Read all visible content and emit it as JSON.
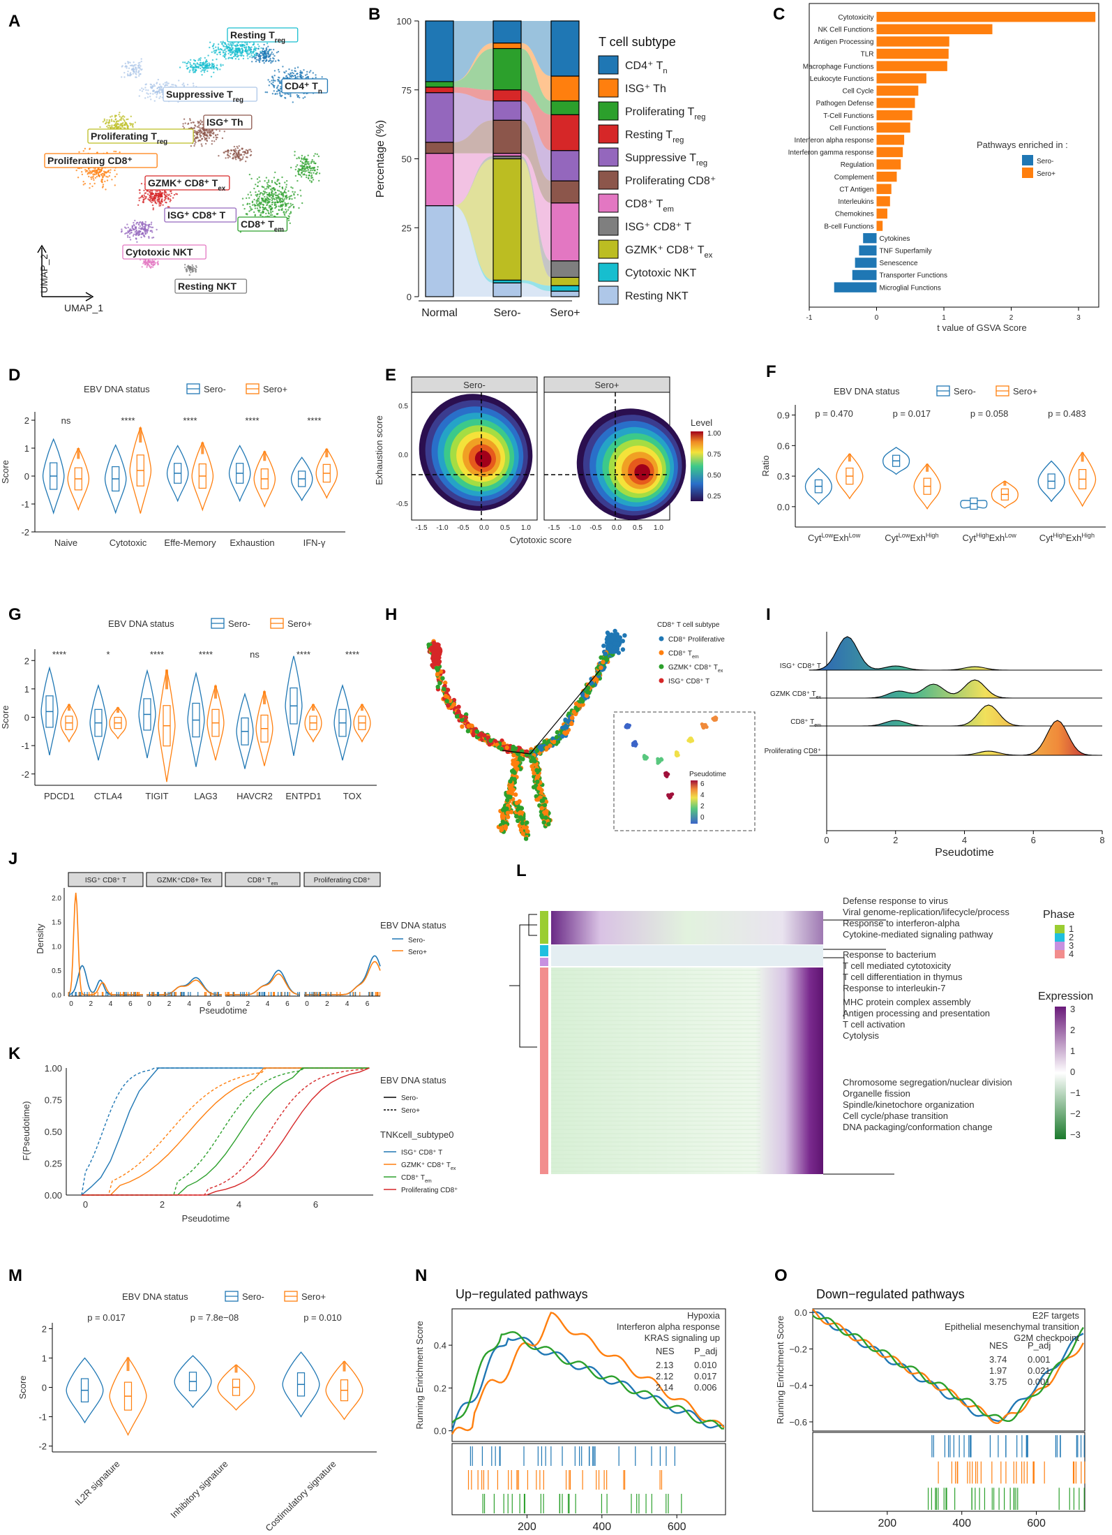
{
  "colors": {
    "sero_minus": "#1f77b4",
    "sero_plus": "#ff7f0e",
    "green": "#2ca02c",
    "red": "#d62728",
    "purple": "#9467bd",
    "brown": "#8c564b",
    "pink": "#e377c2",
    "grey": "#7f7f7f",
    "olive": "#bcbd22",
    "cyan": "#17becf",
    "lightblue": "#aec7e8",
    "phase1": "#9acd32",
    "phase2": "#1fbfdf",
    "phase3": "#c790e0",
    "phase4": "#f28d8d"
  },
  "panel_letters": [
    "A",
    "B",
    "C",
    "D",
    "E",
    "F",
    "G",
    "H",
    "I",
    "J",
    "K",
    "L",
    "M",
    "N",
    "O"
  ],
  "chart_data": [
    {
      "panel": "A",
      "type": "scatter",
      "title": "UMAP of T/NK cell subtypes",
      "xlabel": "UMAP_1",
      "ylabel": "UMAP_2",
      "clusters": [
        {
          "name": "Resting T",
          "sub": "reg",
          "color": "#17becf"
        },
        {
          "name": "CD4⁺ T",
          "sub": "n",
          "color": "#1f77b4"
        },
        {
          "name": "Suppressive T",
          "sub": "reg",
          "color": "#aec7e8"
        },
        {
          "name": "ISG⁺ Th",
          "sub": "",
          "color": "#8c564b"
        },
        {
          "name": "Proliferating T",
          "sub": "reg",
          "color": "#bcbd22"
        },
        {
          "name": "Proliferating CD8⁺",
          "sub": "",
          "color": "#ff7f0e"
        },
        {
          "name": "GZMK⁺ CD8⁺ T",
          "sub": "ex",
          "color": "#d62728"
        },
        {
          "name": "ISG⁺ CD8⁺ T",
          "sub": "",
          "color": "#9467bd"
        },
        {
          "name": "CD8⁺ T",
          "sub": "em",
          "color": "#2ca02c"
        },
        {
          "name": "Cytotoxic NKT",
          "sub": "",
          "color": "#e377c2"
        },
        {
          "name": "Resting NKT",
          "sub": "",
          "color": "#7f7f7f"
        }
      ]
    },
    {
      "panel": "B",
      "type": "bar",
      "ylabel": "Percentage (%)",
      "categories": [
        "Normal",
        "Sero-",
        "Sero+"
      ],
      "yticks": [
        "0",
        "25",
        "50",
        "75",
        "100"
      ],
      "legend_title": "T cell subtype",
      "series": [
        {
          "name": "Resting NKT",
          "color": "#aec7e8",
          "values": [
            33,
            5,
            2
          ]
        },
        {
          "name": "Cytotoxic NKT",
          "color": "#17becf",
          "values": [
            0,
            1,
            2
          ]
        },
        {
          "name": "GZMK⁺ CD8⁺ T",
          "sub": "ex",
          "color": "#bcbd22",
          "values": [
            0,
            44,
            3
          ]
        },
        {
          "name": "ISG⁺ CD8⁺ T",
          "color": "#7f7f7f",
          "values": [
            0,
            1,
            6
          ]
        },
        {
          "name": "CD8⁺ T",
          "sub": "em",
          "color": "#e377c2",
          "values": [
            19,
            1,
            21
          ]
        },
        {
          "name": "Proliferating CD8⁺",
          "color": "#8c564b",
          "values": [
            4,
            12,
            8
          ]
        },
        {
          "name": "Suppressive T",
          "sub": "reg",
          "color": "#9467bd",
          "values": [
            18,
            7,
            11
          ]
        },
        {
          "name": "Resting T",
          "sub": "reg",
          "color": "#d62728",
          "values": [
            2,
            4,
            13
          ]
        },
        {
          "name": "Proliferating T",
          "sub": "reg",
          "color": "#2ca02c",
          "values": [
            2,
            15,
            5
          ]
        },
        {
          "name": "ISG⁺ Th",
          "color": "#ff7f0e",
          "values": [
            0,
            2,
            9
          ]
        },
        {
          "name": "CD4⁺ T",
          "sub": "n",
          "color": "#1f77b4",
          "values": [
            22,
            8,
            20
          ]
        }
      ]
    },
    {
      "panel": "C",
      "type": "bar",
      "orientation": "horizontal",
      "xlabel": "t value of GSVA Score",
      "xlim": [
        -1,
        3.3
      ],
      "xticks": [
        "-1",
        "0",
        "1",
        "2",
        "3"
      ],
      "legend_title": "Pathways enriched in :",
      "legend": [
        "Sero-",
        "Sero+"
      ],
      "categories": [
        "Cytotoxicity",
        "NK Cell Functions",
        "Antigen Processing",
        "TLR",
        "Macrophage Functions",
        "Leukocyte Functions",
        "Cell Cycle",
        "Pathogen Defense",
        "T-Cell Functions",
        "Cell Functions",
        "Interferon alpha response",
        "Interferon gamma response",
        "Regulation",
        "Complement",
        "CT Antigen",
        "Interleukins",
        "Chemokines",
        "B-cell Functions",
        "Cytokines",
        "TNF Superfamily",
        "Senescence",
        "Transporter Functions",
        "Microglial Functions"
      ],
      "values": [
        3.25,
        1.72,
        1.08,
        1.07,
        1.05,
        0.74,
        0.62,
        0.57,
        0.53,
        0.5,
        0.41,
        0.39,
        0.36,
        0.3,
        0.22,
        0.2,
        0.16,
        0.09,
        -0.2,
        -0.26,
        -0.32,
        -0.36,
        -0.63
      ]
    },
    {
      "panel": "D",
      "type": "violin",
      "legend_title": "EBV DNA status",
      "legend": [
        "Sero-",
        "Sero+"
      ],
      "ylabel": "Score",
      "ylim": [
        -2,
        2.3
      ],
      "yticks": [
        "-2",
        "-1",
        "0",
        "1",
        "2"
      ],
      "categories": [
        "Naive",
        "Cytotoxic",
        "Effe-Memory",
        "Exhaustion",
        "IFN-γ"
      ],
      "significance": [
        "ns",
        "****",
        "****",
        "****",
        "****"
      ]
    },
    {
      "panel": "E",
      "type": "heatmap",
      "facets": [
        "Sero-",
        "Sero+"
      ],
      "xlabel": "Cytotoxic score",
      "ylabel": "Exhaustion score",
      "xticks": [
        "-1.5",
        "-1.0",
        "-0.5",
        "0.0",
        "0.5",
        "1.0"
      ],
      "yticks": [
        "-0.5",
        "0.0",
        "0.5"
      ],
      "legend_title": "Level",
      "legend_ticks": [
        "1.00",
        "0.75",
        "0.50",
        "0.25"
      ]
    },
    {
      "panel": "F",
      "type": "violin",
      "legend_title": "EBV DNA status",
      "legend": [
        "Sero-",
        "Sero+"
      ],
      "ylabel": "Ratio",
      "yticks": [
        "0.0",
        "0.3",
        "0.6",
        "0.9"
      ],
      "pvalues": [
        "p = 0.470",
        "p = 0.017",
        "p = 0.058",
        "p = 0.483"
      ],
      "categories": [
        {
          "a": "Cyt",
          "as": "Low",
          "b": "Exh",
          "bs": "Low"
        },
        {
          "a": "Cyt",
          "as": "Low",
          "b": "Exh",
          "bs": "High"
        },
        {
          "a": "Cyt",
          "as": "High",
          "b": "Exh",
          "bs": "Low"
        },
        {
          "a": "Cyt",
          "as": "High",
          "b": "Exh",
          "bs": "High"
        }
      ]
    },
    {
      "panel": "G",
      "type": "violin",
      "legend_title": "EBV DNA status",
      "legend": [
        "Sero-",
        "Sero+"
      ],
      "ylabel": "Score",
      "yticks": [
        "-2",
        "-1",
        "0",
        "1",
        "2"
      ],
      "categories": [
        "PDCD1",
        "CTLA4",
        "TIGIT",
        "LAG3",
        "HAVCR2",
        "ENTPD1",
        "TOX"
      ],
      "significance": [
        "****",
        "*",
        "****",
        "****",
        "ns",
        "****",
        "****"
      ]
    },
    {
      "panel": "H",
      "type": "scatter",
      "legend_title": "CD8⁺ T cell subtype",
      "legend": [
        {
          "name": "CD8⁺ Proliferative",
          "color": "#1f77b4"
        },
        {
          "name": "CD8⁺ T",
          "sub": "em",
          "color": "#ff7f0e"
        },
        {
          "name": "GZMK⁺ CD8⁺ T",
          "sub": "ex",
          "color": "#2ca02c"
        },
        {
          "name": "ISG⁺ CD8⁺ T",
          "color": "#d62728"
        }
      ],
      "inset_title": "Pseudotime",
      "inset_ticks": [
        "6",
        "4",
        "2",
        "0"
      ]
    },
    {
      "panel": "I",
      "type": "area",
      "xlabel": "Pseudotime",
      "xticks": [
        "0",
        "2",
        "4",
        "6",
        "8"
      ],
      "categories": [
        "ISG⁺ CD8⁺ T",
        "GZMK CD8⁺ T",
        "CD8⁺ T",
        "Proliferating CD8⁺"
      ],
      "subs": [
        "",
        "ex",
        "em",
        ""
      ]
    },
    {
      "panel": "J",
      "type": "line",
      "facets": [
        "ISG⁺ CD8⁺ T",
        "GZMK⁺CD8+ Tex",
        "CD8⁺ T",
        "Proliferating CD8⁺"
      ],
      "facet_subs": [
        "",
        "",
        "em",
        ""
      ],
      "xlabel": "Pseudotime",
      "ylabel": "Density",
      "xticks": [
        "0",
        "2",
        "4",
        "6"
      ],
      "yticks": [
        "0.0",
        "0.5",
        "1.0",
        "1.5",
        "2.0"
      ],
      "legend_title": "EBV DNA status",
      "legend": [
        "Sero-",
        "Sero+"
      ]
    },
    {
      "panel": "K",
      "type": "line",
      "xlabel": "Pseudotime",
      "ylabel": "F(Pseudotime)",
      "xticks": [
        "0",
        "2",
        "4",
        "6"
      ],
      "yticks": [
        "0.00",
        "0.25",
        "0.50",
        "0.75",
        "1.00"
      ],
      "legend_title": "EBV DNA status",
      "legend": [
        "Sero-",
        "Sero+"
      ],
      "legend2_title": "TNKcell_subtype0",
      "legend2": [
        {
          "name": "ISG⁺ CD8⁺ T",
          "color": "#1f77b4"
        },
        {
          "name": "GZMK⁺ CD8⁺ T",
          "sub": "ex",
          "color": "#ff7f0e"
        },
        {
          "name": "CD8⁺ T",
          "sub": "em",
          "color": "#2ca02c"
        },
        {
          "name": "Proliferating CD8⁺",
          "color": "#d62728"
        }
      ]
    },
    {
      "panel": "L",
      "type": "heatmap",
      "legend_phase_title": "Phase",
      "legend_phase": [
        "1",
        "2",
        "3",
        "4"
      ],
      "legend_expr_title": "Expression",
      "legend_expr_ticks": [
        "3",
        "2",
        "1",
        "0",
        "−1",
        "−2",
        "−3"
      ],
      "annotation_groups": [
        [
          "Defense response to virus",
          "Viral genome-replication/lifecycle/process",
          "Response to interferon-alpha",
          "Cytokine-mediated signaling pathway"
        ],
        [
          "Response to bacterium",
          "T cell mediated cytotoxicity",
          "T cell differentiation in thymus",
          "Response to interleukin-7"
        ],
        [
          "MHC protein complex assembly",
          "Antigen processing and presentation",
          "T cell activation",
          "Cytolysis"
        ],
        [
          "Chromosome segregation/nuclear division",
          "Organelle fission",
          "Spindle/kinetochore organization",
          "Cell cycle/phase transition",
          "DNA packaging/conformation change"
        ]
      ]
    },
    {
      "panel": "M",
      "type": "violin",
      "legend_title": "EBV DNA status",
      "legend": [
        "Sero-",
        "Sero+"
      ],
      "ylabel": "Score",
      "yticks": [
        "-2",
        "-1",
        "0",
        "1",
        "2"
      ],
      "categories": [
        "IL2R signature",
        "Inhibitory signature",
        "Costimulatory signature"
      ],
      "pvalues": [
        "p = 0.017",
        "p = 7.8e−08",
        "p = 0.010"
      ]
    },
    {
      "panel": "N",
      "type": "line",
      "title": "Up−regulated pathways",
      "ylabel": "Running Enrichment Score",
      "xticks": [
        "200",
        "400",
        "600"
      ],
      "yticks": [
        "0.0",
        "0.2",
        "0.4"
      ],
      "series": [
        {
          "name": "Hypoxia",
          "color": "#1f77b4",
          "nes": "2.13",
          "padj": "0.010"
        },
        {
          "name": "Interferon alpha response",
          "color": "#ff7f0e",
          "nes": "2.12",
          "padj": "0.017"
        },
        {
          "name": "KRAS signaling up",
          "color": "#2ca02c",
          "nes": "2.14",
          "padj": "0.006"
        }
      ],
      "col_nes": "NES",
      "col_padj": "P_adj"
    },
    {
      "panel": "O",
      "type": "line",
      "title": "Down−regulated pathways",
      "ylabel": "Running Enrichment Score",
      "xticks": [
        "200",
        "400",
        "600"
      ],
      "yticks": [
        "0.0",
        "−0.2",
        "−0.4",
        "−0.6"
      ],
      "series": [
        {
          "name": "E2F targets",
          "color": "#1f77b4",
          "nes": "3.74",
          "padj": "0.001"
        },
        {
          "name": "Epithelial mesenchymal transition",
          "color": "#ff7f0e",
          "nes": "1.97",
          "padj": "0.021"
        },
        {
          "name": "G2M checkpoint",
          "color": "#2ca02c",
          "nes": "3.75",
          "padj": "0.001"
        }
      ],
      "col_nes": "NES",
      "col_padj": "P_adj"
    }
  ]
}
